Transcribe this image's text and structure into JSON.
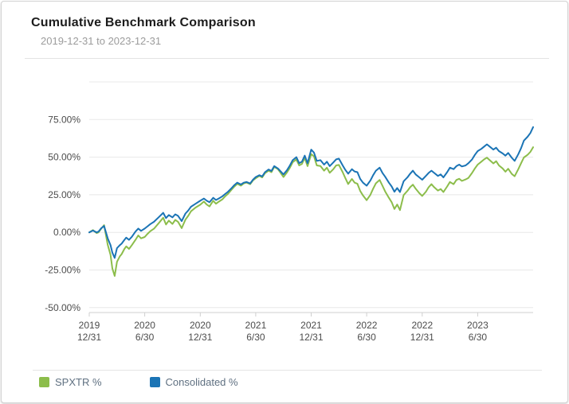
{
  "header": {
    "title": "Cumulative Benchmark Comparison",
    "subtitle": "2019-12-31 to 2023-12-31"
  },
  "legend": {
    "items": [
      {
        "label": "SPXTR %",
        "color": "#8cbd4b"
      },
      {
        "label": "Consolidated %",
        "color": "#1b74b5"
      }
    ]
  },
  "colors": {
    "spxtr_green": "#8cbd4b",
    "consolidated_blue": "#1b74b5",
    "gridline": "#e8e8e8",
    "axis_line": "#cfcfcf",
    "tick_text": "#4c4c4c"
  },
  "chart_data": {
    "type": "line",
    "title": "Cumulative Benchmark Comparison",
    "subtitle": "2019-12-31 to 2023-12-31",
    "x_unit": "months since 2019-12-31",
    "xlim": [
      0,
      48
    ],
    "ylim": [
      -53.3,
      100
    ],
    "grid": true,
    "legend_position": "bottom",
    "y_ticks": [
      {
        "value": 75,
        "label": "75.00%"
      },
      {
        "value": 50,
        "label": "50.00%"
      },
      {
        "value": 25,
        "label": "25.00%"
      },
      {
        "value": 0,
        "label": "0.00%"
      },
      {
        "value": -25,
        "label": "-25.00%"
      },
      {
        "value": -50,
        "label": "-50.00%"
      }
    ],
    "x_ticks": [
      {
        "month": 0,
        "line1": "2019",
        "line2": "12/31"
      },
      {
        "month": 6,
        "line1": "2020",
        "line2": "6/30"
      },
      {
        "month": 12,
        "line1": "2020",
        "line2": "12/31"
      },
      {
        "month": 18,
        "line1": "2021",
        "line2": "6/30"
      },
      {
        "month": 24,
        "line1": "2021",
        "line2": "12/31"
      },
      {
        "month": 30,
        "line1": "2022",
        "line2": "6/30"
      },
      {
        "month": 36,
        "line1": "2022",
        "line2": "12/31"
      },
      {
        "month": 42,
        "line1": "2023",
        "line2": "6/30"
      }
    ],
    "series": [
      {
        "name": "SPXTR %",
        "color": "#8cbd4b",
        "points": [
          [
            0,
            0
          ],
          [
            0.4,
            1.5
          ],
          [
            0.8,
            -0.5
          ],
          [
            1,
            0
          ],
          [
            1.3,
            2.5
          ],
          [
            1.6,
            4.8
          ],
          [
            2,
            -8.3
          ],
          [
            2.3,
            -15
          ],
          [
            2.5,
            -24
          ],
          [
            2.75,
            -29
          ],
          [
            3,
            -19.6
          ],
          [
            3.3,
            -16
          ],
          [
            3.5,
            -14.5
          ],
          [
            3.8,
            -11
          ],
          [
            4,
            -9.3
          ],
          [
            4.3,
            -11
          ],
          [
            4.6,
            -8.5
          ],
          [
            5,
            -5
          ],
          [
            5.3,
            -2
          ],
          [
            5.6,
            -4
          ],
          [
            6,
            -3.1
          ],
          [
            6.3,
            -1
          ],
          [
            6.6,
            0.8
          ],
          [
            7,
            2.4
          ],
          [
            7.5,
            6
          ],
          [
            8,
            9.7
          ],
          [
            8.3,
            5.2
          ],
          [
            8.6,
            7.8
          ],
          [
            9,
            5.6
          ],
          [
            9.3,
            8.3
          ],
          [
            9.6,
            7
          ],
          [
            10,
            2.8
          ],
          [
            10.4,
            8.5
          ],
          [
            10.7,
            11
          ],
          [
            11,
            14
          ],
          [
            11.5,
            16.5
          ],
          [
            12,
            18.4
          ],
          [
            12.4,
            20.5
          ],
          [
            12.7,
            18.5
          ],
          [
            13,
            17.2
          ],
          [
            13.4,
            21
          ],
          [
            13.7,
            19
          ],
          [
            14,
            20.4
          ],
          [
            14.4,
            22
          ],
          [
            14.7,
            24
          ],
          [
            15,
            25.6
          ],
          [
            15.4,
            28.5
          ],
          [
            15.7,
            30.5
          ],
          [
            16,
            32.3
          ],
          [
            16.4,
            31
          ],
          [
            16.7,
            32.5
          ],
          [
            17,
            33.1
          ],
          [
            17.4,
            32
          ],
          [
            17.7,
            34.5
          ],
          [
            18,
            36
          ],
          [
            18.4,
            37.5
          ],
          [
            18.7,
            36.5
          ],
          [
            19,
            39.3
          ],
          [
            19.4,
            41
          ],
          [
            19.7,
            40
          ],
          [
            20,
            43.5
          ],
          [
            20.4,
            42
          ],
          [
            20.7,
            39.5
          ],
          [
            21,
            36.8
          ],
          [
            21.4,
            40
          ],
          [
            21.7,
            43
          ],
          [
            22,
            46.6
          ],
          [
            22.4,
            48.5
          ],
          [
            22.7,
            44.5
          ],
          [
            23,
            45.5
          ],
          [
            23.3,
            49.5
          ],
          [
            23.6,
            44
          ],
          [
            24,
            52
          ],
          [
            24.3,
            50.5
          ],
          [
            24.6,
            44.5
          ],
          [
            25,
            44.1
          ],
          [
            25.4,
            41
          ],
          [
            25.7,
            43
          ],
          [
            26,
            39.6
          ],
          [
            26.4,
            42
          ],
          [
            26.7,
            44.5
          ],
          [
            27,
            44.8
          ],
          [
            27.4,
            40
          ],
          [
            27.7,
            36
          ],
          [
            28,
            32.1
          ],
          [
            28.4,
            35.5
          ],
          [
            28.7,
            33
          ],
          [
            29,
            32.3
          ],
          [
            29.3,
            27.5
          ],
          [
            29.6,
            24.5
          ],
          [
            30,
            21.4
          ],
          [
            30.4,
            25
          ],
          [
            30.7,
            29
          ],
          [
            31,
            32.6
          ],
          [
            31.4,
            34.8
          ],
          [
            31.7,
            31
          ],
          [
            32,
            27.2
          ],
          [
            32.4,
            23
          ],
          [
            32.7,
            20
          ],
          [
            33,
            15.5
          ],
          [
            33.3,
            18.5
          ],
          [
            33.6,
            14.8
          ],
          [
            34,
            24.8
          ],
          [
            34.4,
            27.5
          ],
          [
            34.7,
            30
          ],
          [
            35,
            31.7
          ],
          [
            35.3,
            29
          ],
          [
            35.7,
            26
          ],
          [
            36,
            24.2
          ],
          [
            36.4,
            27
          ],
          [
            36.7,
            30
          ],
          [
            37,
            32
          ],
          [
            37.3,
            30
          ],
          [
            37.7,
            27.8
          ],
          [
            38,
            28.8
          ],
          [
            38.3,
            26.8
          ],
          [
            38.7,
            30.5
          ],
          [
            39,
            33.5
          ],
          [
            39.4,
            32
          ],
          [
            39.7,
            34.8
          ],
          [
            40,
            35.6
          ],
          [
            40.3,
            34.2
          ],
          [
            40.7,
            35.2
          ],
          [
            41,
            36.2
          ],
          [
            41.4,
            39.5
          ],
          [
            41.7,
            42.5
          ],
          [
            42,
            45
          ],
          [
            42.4,
            47
          ],
          [
            42.7,
            48.5
          ],
          [
            43,
            49.7
          ],
          [
            43.3,
            48
          ],
          [
            43.7,
            45.8
          ],
          [
            44,
            47.3
          ],
          [
            44.3,
            44.5
          ],
          [
            44.7,
            42.5
          ],
          [
            45,
            40.3
          ],
          [
            45.3,
            42.3
          ],
          [
            45.7,
            38.8
          ],
          [
            46,
            37.3
          ],
          [
            46.4,
            42
          ],
          [
            46.7,
            46
          ],
          [
            47,
            49.8
          ],
          [
            47.4,
            51.5
          ],
          [
            47.7,
            53.5
          ],
          [
            48,
            56.6
          ]
        ]
      },
      {
        "name": "Consolidated %",
        "color": "#1b74b5",
        "points": [
          [
            0,
            0
          ],
          [
            0.4,
            1.2
          ],
          [
            0.8,
            0
          ],
          [
            1,
            0.5
          ],
          [
            1.3,
            2.8
          ],
          [
            1.6,
            4.2
          ],
          [
            2,
            -4
          ],
          [
            2.3,
            -8.5
          ],
          [
            2.5,
            -13.5
          ],
          [
            2.75,
            -17
          ],
          [
            3,
            -10.5
          ],
          [
            3.3,
            -8.5
          ],
          [
            3.5,
            -7.5
          ],
          [
            3.8,
            -5
          ],
          [
            4,
            -3.5
          ],
          [
            4.3,
            -5
          ],
          [
            4.6,
            -3
          ],
          [
            5,
            0.5
          ],
          [
            5.3,
            2.5
          ],
          [
            5.6,
            1
          ],
          [
            6,
            2.5
          ],
          [
            6.3,
            4
          ],
          [
            6.6,
            5.5
          ],
          [
            7,
            7
          ],
          [
            7.5,
            10
          ],
          [
            8,
            13
          ],
          [
            8.3,
            9.5
          ],
          [
            8.6,
            11.5
          ],
          [
            9,
            10
          ],
          [
            9.3,
            12
          ],
          [
            9.6,
            11
          ],
          [
            10,
            7.5
          ],
          [
            10.4,
            12.5
          ],
          [
            10.7,
            14.5
          ],
          [
            11,
            17
          ],
          [
            11.5,
            19
          ],
          [
            12,
            21
          ],
          [
            12.4,
            22.5
          ],
          [
            12.7,
            21
          ],
          [
            13,
            20
          ],
          [
            13.4,
            23
          ],
          [
            13.7,
            21.5
          ],
          [
            14,
            22.5
          ],
          [
            14.4,
            24
          ],
          [
            14.7,
            25.5
          ],
          [
            15,
            27
          ],
          [
            15.4,
            29.5
          ],
          [
            15.7,
            31.5
          ],
          [
            16,
            33
          ],
          [
            16.4,
            31.8
          ],
          [
            16.7,
            33
          ],
          [
            17,
            33.5
          ],
          [
            17.4,
            32.5
          ],
          [
            17.7,
            35
          ],
          [
            18,
            36.8
          ],
          [
            18.4,
            38
          ],
          [
            18.7,
            37.2
          ],
          [
            19,
            40
          ],
          [
            19.4,
            41.8
          ],
          [
            19.7,
            40.8
          ],
          [
            20,
            44
          ],
          [
            20.4,
            42.5
          ],
          [
            20.7,
            40.5
          ],
          [
            21,
            38.5
          ],
          [
            21.4,
            41.5
          ],
          [
            21.7,
            44.5
          ],
          [
            22,
            48
          ],
          [
            22.4,
            50
          ],
          [
            22.7,
            46
          ],
          [
            23,
            47
          ],
          [
            23.3,
            51
          ],
          [
            23.6,
            46
          ],
          [
            24,
            55
          ],
          [
            24.3,
            53
          ],
          [
            24.6,
            47.5
          ],
          [
            25,
            48
          ],
          [
            25.4,
            45
          ],
          [
            25.7,
            47
          ],
          [
            26,
            44
          ],
          [
            26.4,
            46.5
          ],
          [
            26.7,
            48.5
          ],
          [
            27,
            49
          ],
          [
            27.4,
            44.5
          ],
          [
            27.7,
            41.5
          ],
          [
            28,
            39
          ],
          [
            28.4,
            42
          ],
          [
            28.7,
            40.5
          ],
          [
            29,
            40
          ],
          [
            29.3,
            35.5
          ],
          [
            29.6,
            33
          ],
          [
            30,
            31
          ],
          [
            30.4,
            34.5
          ],
          [
            30.7,
            38
          ],
          [
            31,
            41
          ],
          [
            31.4,
            43
          ],
          [
            31.7,
            39.5
          ],
          [
            32,
            37
          ],
          [
            32.4,
            33
          ],
          [
            32.7,
            30.5
          ],
          [
            33,
            27
          ],
          [
            33.3,
            29.5
          ],
          [
            33.6,
            26.8
          ],
          [
            34,
            34
          ],
          [
            34.4,
            36.5
          ],
          [
            34.7,
            39
          ],
          [
            35,
            41
          ],
          [
            35.3,
            38.5
          ],
          [
            35.7,
            36.5
          ],
          [
            36,
            35
          ],
          [
            36.4,
            37.5
          ],
          [
            36.7,
            39.5
          ],
          [
            37,
            41
          ],
          [
            37.3,
            39.5
          ],
          [
            37.7,
            37.5
          ],
          [
            38,
            38.5
          ],
          [
            38.3,
            36.5
          ],
          [
            38.7,
            40
          ],
          [
            39,
            43
          ],
          [
            39.4,
            42
          ],
          [
            39.7,
            44
          ],
          [
            40,
            45
          ],
          [
            40.3,
            43.8
          ],
          [
            40.7,
            44.5
          ],
          [
            41,
            46
          ],
          [
            41.4,
            48.5
          ],
          [
            41.7,
            51.5
          ],
          [
            42,
            54
          ],
          [
            42.4,
            55.5
          ],
          [
            42.7,
            57
          ],
          [
            43,
            58.5
          ],
          [
            43.3,
            57
          ],
          [
            43.7,
            55
          ],
          [
            44,
            56.3
          ],
          [
            44.3,
            54
          ],
          [
            44.7,
            52.5
          ],
          [
            45,
            51
          ],
          [
            45.3,
            52.8
          ],
          [
            45.7,
            49.5
          ],
          [
            46,
            47.5
          ],
          [
            46.4,
            52
          ],
          [
            46.7,
            56
          ],
          [
            47,
            61
          ],
          [
            47.4,
            63.5
          ],
          [
            47.7,
            66
          ],
          [
            48,
            70
          ]
        ]
      }
    ]
  }
}
